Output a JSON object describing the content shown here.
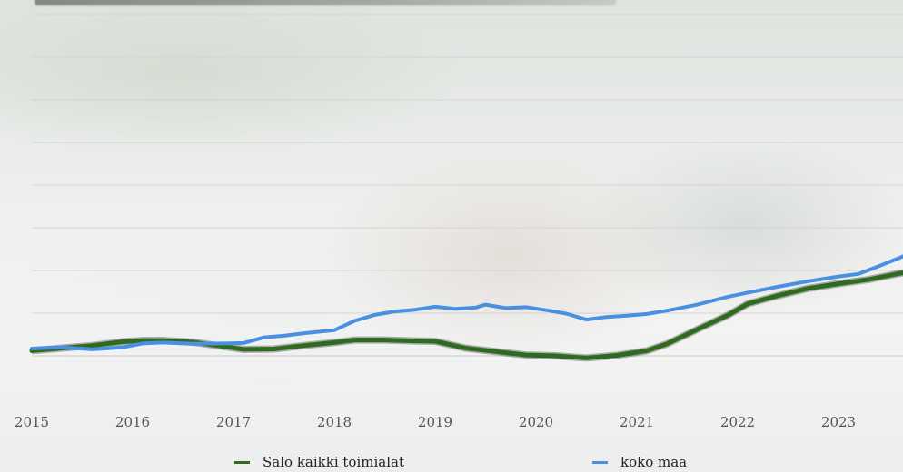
{
  "chart_data": {
    "type": "line",
    "title": "",
    "xlabel": "",
    "ylabel": "",
    "x_ticks": [
      "2015",
      "2016",
      "2017",
      "2018",
      "2019",
      "2020",
      "2021",
      "2022",
      "2023"
    ],
    "xlim": [
      2015,
      2023.85
    ],
    "ylim": [
      0,
      8
    ],
    "grid": true,
    "legend_position": "bottom",
    "series": [
      {
        "name": "Salo kaikki toimialat",
        "color": "#2e6b1e",
        "points": [
          [
            2015.0,
            0.12
          ],
          [
            2015.3,
            0.18
          ],
          [
            2015.6,
            0.24
          ],
          [
            2015.9,
            0.33
          ],
          [
            2016.1,
            0.36
          ],
          [
            2016.3,
            0.36
          ],
          [
            2016.6,
            0.32
          ],
          [
            2016.9,
            0.22
          ],
          [
            2017.1,
            0.15
          ],
          [
            2017.4,
            0.16
          ],
          [
            2017.7,
            0.24
          ],
          [
            2018.0,
            0.31
          ],
          [
            2018.2,
            0.37
          ],
          [
            2018.5,
            0.37
          ],
          [
            2018.8,
            0.35
          ],
          [
            2019.0,
            0.34
          ],
          [
            2019.3,
            0.18
          ],
          [
            2019.6,
            0.1
          ],
          [
            2019.9,
            0.02
          ],
          [
            2020.2,
            0.0
          ],
          [
            2020.5,
            -0.05
          ],
          [
            2020.8,
            0.01
          ],
          [
            2021.1,
            0.12
          ],
          [
            2021.3,
            0.28
          ],
          [
            2021.6,
            0.62
          ],
          [
            2021.9,
            0.95
          ],
          [
            2022.1,
            1.22
          ],
          [
            2022.4,
            1.41
          ],
          [
            2022.7,
            1.58
          ],
          [
            2023.0,
            1.69
          ],
          [
            2023.3,
            1.79
          ],
          [
            2023.6,
            1.93
          ],
          [
            2023.85,
            2.02
          ]
        ]
      },
      {
        "name": "koko maa",
        "color": "#4a90e2",
        "points": [
          [
            2015.0,
            0.17
          ],
          [
            2015.3,
            0.2
          ],
          [
            2015.6,
            0.15
          ],
          [
            2015.9,
            0.2
          ],
          [
            2016.1,
            0.29
          ],
          [
            2016.3,
            0.31
          ],
          [
            2016.6,
            0.28
          ],
          [
            2016.9,
            0.29
          ],
          [
            2017.1,
            0.3
          ],
          [
            2017.3,
            0.43
          ],
          [
            2017.5,
            0.47
          ],
          [
            2017.7,
            0.53
          ],
          [
            2018.0,
            0.6
          ],
          [
            2018.2,
            0.82
          ],
          [
            2018.4,
            0.96
          ],
          [
            2018.6,
            1.04
          ],
          [
            2018.8,
            1.08
          ],
          [
            2019.0,
            1.15
          ],
          [
            2019.2,
            1.1
          ],
          [
            2019.4,
            1.13
          ],
          [
            2019.5,
            1.2
          ],
          [
            2019.7,
            1.12
          ],
          [
            2019.9,
            1.14
          ],
          [
            2020.1,
            1.07
          ],
          [
            2020.3,
            0.99
          ],
          [
            2020.5,
            0.85
          ],
          [
            2020.7,
            0.91
          ],
          [
            2020.9,
            0.94
          ],
          [
            2021.1,
            0.98
          ],
          [
            2021.3,
            1.06
          ],
          [
            2021.6,
            1.2
          ],
          [
            2021.9,
            1.38
          ],
          [
            2022.1,
            1.48
          ],
          [
            2022.4,
            1.62
          ],
          [
            2022.7,
            1.75
          ],
          [
            2023.0,
            1.86
          ],
          [
            2023.2,
            1.92
          ],
          [
            2023.4,
            2.1
          ],
          [
            2023.6,
            2.29
          ],
          [
            2023.85,
            2.57
          ]
        ]
      }
    ]
  }
}
